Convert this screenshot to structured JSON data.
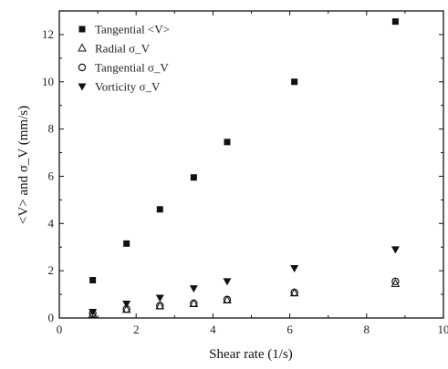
{
  "chart_data": {
    "type": "scatter",
    "title": "",
    "xlabel": "Shear rate (1/s)",
    "ylabel": "<V> and σ_V  (mm/s)",
    "xlim": [
      0,
      10
    ],
    "ylim": [
      0,
      13
    ],
    "x_ticks": [
      0,
      2,
      4,
      6,
      8,
      10
    ],
    "y_ticks": [
      0,
      2,
      4,
      6,
      8,
      10,
      12
    ],
    "grid": false,
    "legend_position": "top-left",
    "series": [
      {
        "name": "Tangential <V>",
        "marker": "filled-square",
        "points": [
          {
            "x": 0.87,
            "y": 1.6
          },
          {
            "x": 1.75,
            "y": 3.15
          },
          {
            "x": 2.62,
            "y": 4.6
          },
          {
            "x": 3.5,
            "y": 5.95
          },
          {
            "x": 4.37,
            "y": 7.45
          },
          {
            "x": 6.12,
            "y": 10.0
          },
          {
            "x": 8.75,
            "y": 12.55
          }
        ]
      },
      {
        "name": "Radial σ_V",
        "marker": "open-triangle",
        "points": [
          {
            "x": 0.87,
            "y": 0.15
          },
          {
            "x": 1.75,
            "y": 0.35
          },
          {
            "x": 2.62,
            "y": 0.5
          },
          {
            "x": 3.5,
            "y": 0.6
          },
          {
            "x": 4.37,
            "y": 0.75
          },
          {
            "x": 6.12,
            "y": 1.05
          },
          {
            "x": 8.75,
            "y": 1.45
          }
        ]
      },
      {
        "name": "Tangential σ_V",
        "marker": "open-circle",
        "points": [
          {
            "x": 0.87,
            "y": 0.2
          },
          {
            "x": 1.75,
            "y": 0.38
          },
          {
            "x": 2.62,
            "y": 0.52
          },
          {
            "x": 3.5,
            "y": 0.62
          },
          {
            "x": 4.37,
            "y": 0.78
          },
          {
            "x": 6.12,
            "y": 1.08
          },
          {
            "x": 8.75,
            "y": 1.55
          }
        ]
      },
      {
        "name": "Vorticity σ_V",
        "marker": "filled-inverted-triangle",
        "points": [
          {
            "x": 0.87,
            "y": 0.25
          },
          {
            "x": 1.75,
            "y": 0.6
          },
          {
            "x": 2.62,
            "y": 0.85
          },
          {
            "x": 3.5,
            "y": 1.25
          },
          {
            "x": 4.37,
            "y": 1.55
          },
          {
            "x": 6.12,
            "y": 2.1
          },
          {
            "x": 8.75,
            "y": 2.9
          }
        ]
      }
    ]
  }
}
